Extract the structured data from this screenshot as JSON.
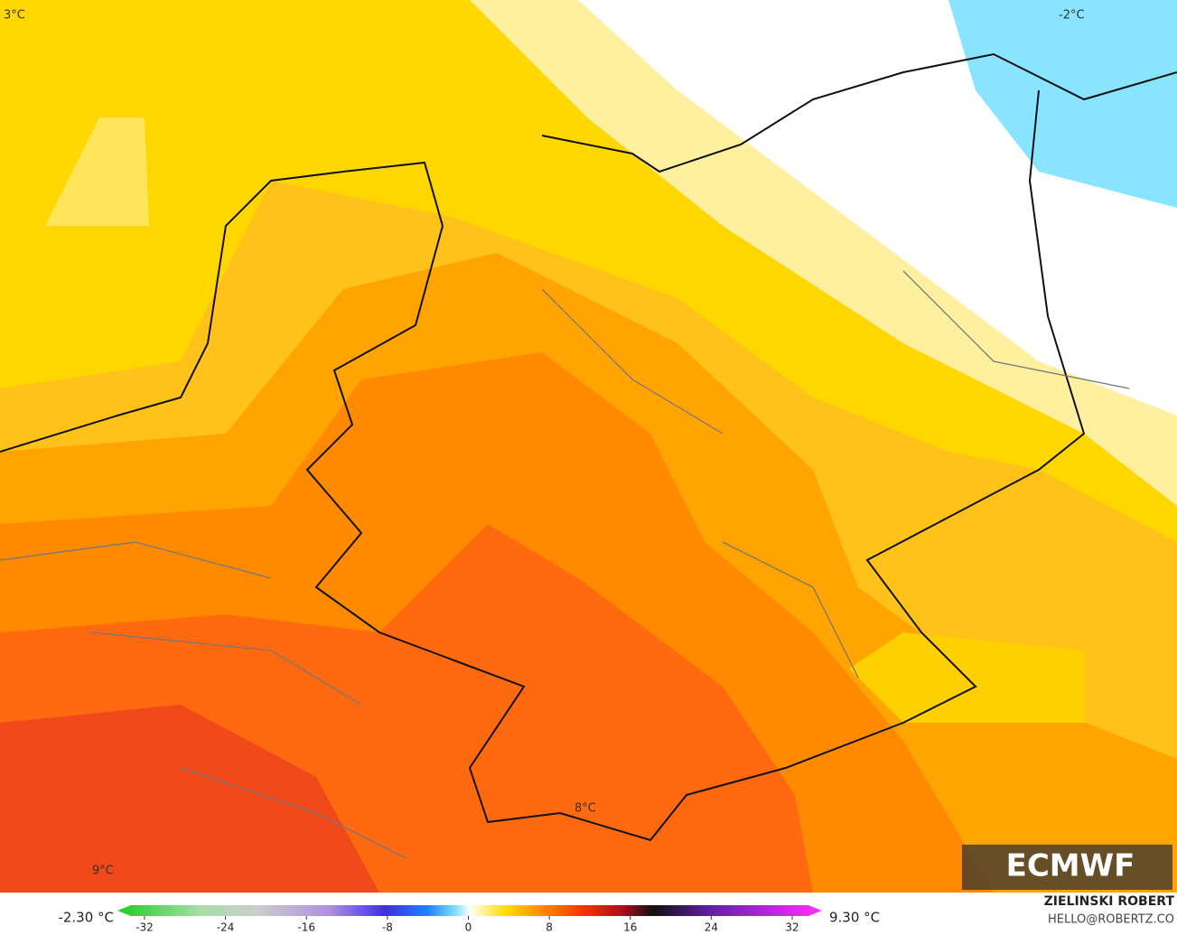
{
  "map_labels": [
    "3°C",
    "-2°C",
    "8°C",
    "9°C"
  ],
  "logo": "ECMWF",
  "colorbar": {
    "min_label": "-2.30 °C",
    "max_label": "9.30 °C",
    "ticks": [
      -32,
      -24,
      -16,
      -8,
      0,
      8,
      16,
      24,
      32
    ]
  },
  "credit": {
    "name": "ZIELINSKI ROBERT",
    "email": "HELLO@ROBERTZ.CO"
  }
}
